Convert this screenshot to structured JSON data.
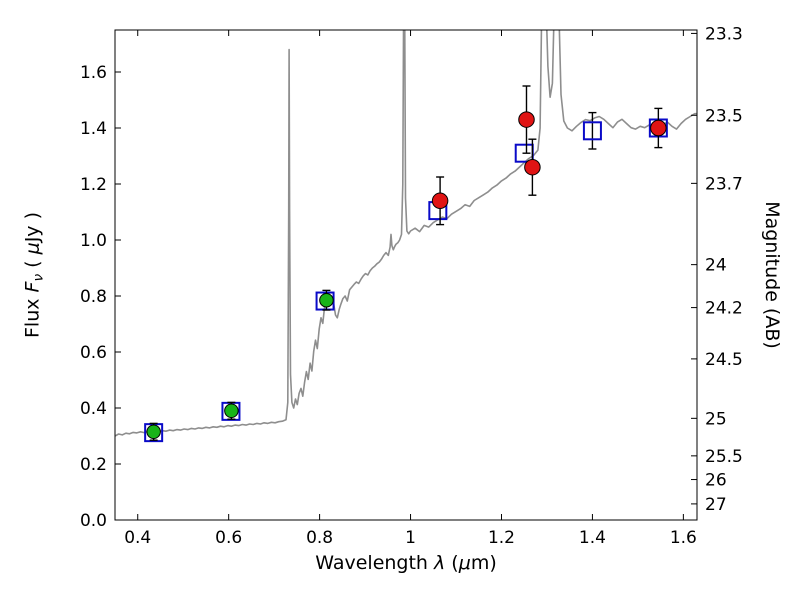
{
  "figure": {
    "background": "#ffffff",
    "frame_color": "#000000",
    "tick_color": "#000000"
  },
  "chart_data": {
    "type": "line",
    "title": "",
    "xlabel": "Wavelength λ (μm)",
    "ylabel": "Flux Fν ( μJy )",
    "ylabel_right": "Magnitude (AB)",
    "xlabel_parts": [
      {
        "t": "Wavelength  "
      },
      {
        "t": "λ",
        "i": true
      },
      {
        "t": "  ("
      },
      {
        "t": "μ",
        "i": true
      },
      {
        "t": "m)"
      }
    ],
    "ylabel_left_parts": [
      {
        "t": "Flux  "
      },
      {
        "t": "F",
        "i": true
      },
      {
        "t": "ν",
        "i": true,
        "sub": true
      },
      {
        "t": "  ( "
      },
      {
        "t": "μ",
        "i": true
      },
      {
        "t": "Jy )"
      }
    ],
    "ylabel_right_parts": [
      {
        "t": "Magnitude (AB)"
      }
    ],
    "xlim": [
      0.35,
      1.63
    ],
    "ylim": [
      0.0,
      1.75
    ],
    "grid": false,
    "legend": null,
    "xticks": [
      {
        "label": "0.4",
        "value": 0.4
      },
      {
        "label": "0.6",
        "value": 0.6
      },
      {
        "label": "0.8",
        "value": 0.8
      },
      {
        "label": "1",
        "value": 1.0
      },
      {
        "label": "1.2",
        "value": 1.2
      },
      {
        "label": "1.4",
        "value": 1.4
      },
      {
        "label": "1.6",
        "value": 1.6
      }
    ],
    "yticks_left": [
      {
        "label": "0.0",
        "value": 0.0
      },
      {
        "label": "0.2",
        "value": 0.2
      },
      {
        "label": "0.4",
        "value": 0.4
      },
      {
        "label": "0.6",
        "value": 0.6
      },
      {
        "label": "0.8",
        "value": 0.8
      },
      {
        "label": "1.0",
        "value": 1.0
      },
      {
        "label": "1.2",
        "value": 1.2
      },
      {
        "label": "1.4",
        "value": 1.4
      },
      {
        "label": "1.6",
        "value": 1.6
      }
    ],
    "yticks_right": [
      {
        "label": "23.3",
        "value": 1.7378
      },
      {
        "label": "23.5",
        "value": 1.4454
      },
      {
        "label": "23.7",
        "value": 1.2023
      },
      {
        "label": "24",
        "value": 0.912
      },
      {
        "label": "24.2",
        "value": 0.7586
      },
      {
        "label": "24.5",
        "value": 0.5754
      },
      {
        "label": "25",
        "value": 0.3631
      },
      {
        "label": "25.5",
        "value": 0.2291
      },
      {
        "label": "26",
        "value": 0.1445
      },
      {
        "label": "27",
        "value": 0.0575
      }
    ],
    "errorbar_color": "#000000",
    "series": [
      {
        "name": "model-spectrum",
        "type": "line",
        "color": "#8e8e8e",
        "width": 1.6,
        "points": [
          [
            0.35,
            0.3
          ],
          [
            0.358,
            0.307
          ],
          [
            0.366,
            0.304
          ],
          [
            0.374,
            0.31
          ],
          [
            0.382,
            0.308
          ],
          [
            0.39,
            0.313
          ],
          [
            0.398,
            0.311
          ],
          [
            0.406,
            0.315
          ],
          [
            0.414,
            0.312
          ],
          [
            0.422,
            0.316
          ],
          [
            0.43,
            0.314
          ],
          [
            0.438,
            0.318
          ],
          [
            0.446,
            0.315
          ],
          [
            0.454,
            0.319
          ],
          [
            0.462,
            0.317
          ],
          [
            0.47,
            0.321
          ],
          [
            0.478,
            0.319
          ],
          [
            0.486,
            0.323
          ],
          [
            0.494,
            0.321
          ],
          [
            0.502,
            0.325
          ],
          [
            0.51,
            0.323
          ],
          [
            0.518,
            0.327
          ],
          [
            0.526,
            0.325
          ],
          [
            0.534,
            0.329
          ],
          [
            0.542,
            0.327
          ],
          [
            0.55,
            0.331
          ],
          [
            0.558,
            0.329
          ],
          [
            0.566,
            0.333
          ],
          [
            0.574,
            0.331
          ],
          [
            0.582,
            0.335
          ],
          [
            0.59,
            0.333
          ],
          [
            0.598,
            0.337
          ],
          [
            0.606,
            0.335
          ],
          [
            0.614,
            0.339
          ],
          [
            0.622,
            0.337
          ],
          [
            0.63,
            0.341
          ],
          [
            0.638,
            0.339
          ],
          [
            0.646,
            0.343
          ],
          [
            0.654,
            0.341
          ],
          [
            0.662,
            0.345
          ],
          [
            0.67,
            0.343
          ],
          [
            0.678,
            0.347
          ],
          [
            0.686,
            0.345
          ],
          [
            0.694,
            0.349
          ],
          [
            0.702,
            0.347
          ],
          [
            0.71,
            0.351
          ],
          [
            0.718,
            0.353
          ],
          [
            0.726,
            0.358
          ],
          [
            0.73,
            0.42
          ],
          [
            0.732,
            1.1
          ],
          [
            0.733,
            1.68
          ],
          [
            0.734,
            1.1
          ],
          [
            0.736,
            0.52
          ],
          [
            0.739,
            0.42
          ],
          [
            0.743,
            0.4
          ],
          [
            0.747,
            0.432
          ],
          [
            0.751,
            0.412
          ],
          [
            0.755,
            0.452
          ],
          [
            0.759,
            0.47
          ],
          [
            0.763,
            0.442
          ],
          [
            0.767,
            0.492
          ],
          [
            0.771,
            0.53
          ],
          [
            0.775,
            0.502
          ],
          [
            0.779,
            0.56
          ],
          [
            0.783,
            0.532
          ],
          [
            0.787,
            0.602
          ],
          [
            0.791,
            0.642
          ],
          [
            0.795,
            0.612
          ],
          [
            0.799,
            0.682
          ],
          [
            0.803,
            0.722
          ],
          [
            0.807,
            0.702
          ],
          [
            0.811,
            0.762
          ],
          [
            0.815,
            0.782
          ],
          [
            0.819,
            0.792
          ],
          [
            0.823,
            0.8
          ],
          [
            0.827,
            0.79
          ],
          [
            0.831,
            0.772
          ],
          [
            0.835,
            0.732
          ],
          [
            0.839,
            0.722
          ],
          [
            0.843,
            0.752
          ],
          [
            0.847,
            0.772
          ],
          [
            0.851,
            0.79
          ],
          [
            0.856,
            0.8
          ],
          [
            0.861,
            0.782
          ],
          [
            0.866,
            0.822
          ],
          [
            0.871,
            0.832
          ],
          [
            0.876,
            0.842
          ],
          [
            0.881,
            0.85
          ],
          [
            0.886,
            0.845
          ],
          [
            0.891,
            0.86
          ],
          [
            0.896,
            0.872
          ],
          [
            0.901,
            0.88
          ],
          [
            0.906,
            0.875
          ],
          [
            0.911,
            0.89
          ],
          [
            0.916,
            0.9
          ],
          [
            0.921,
            0.906
          ],
          [
            0.926,
            0.915
          ],
          [
            0.931,
            0.921
          ],
          [
            0.936,
            0.931
          ],
          [
            0.941,
            0.945
          ],
          [
            0.946,
            0.955
          ],
          [
            0.951,
            0.945
          ],
          [
            0.955,
            0.975
          ],
          [
            0.957,
            1.02
          ],
          [
            0.959,
            0.98
          ],
          [
            0.962,
            0.965
          ],
          [
            0.965,
            0.976
          ],
          [
            0.968,
            0.985
          ],
          [
            0.972,
            0.99
          ],
          [
            0.976,
            1.0
          ],
          [
            0.98,
            1.02
          ],
          [
            0.983,
            1.2
          ],
          [
            0.985,
            1.9
          ],
          [
            0.987,
            1.9
          ],
          [
            0.989,
            1.15
          ],
          [
            0.992,
            1.032
          ],
          [
            0.996,
            1.022
          ],
          [
            1.0,
            1.032
          ],
          [
            1.01,
            1.042
          ],
          [
            1.02,
            1.03
          ],
          [
            1.03,
            1.052
          ],
          [
            1.04,
            1.046
          ],
          [
            1.05,
            1.062
          ],
          [
            1.06,
            1.072
          ],
          [
            1.07,
            1.082
          ],
          [
            1.08,
            1.076
          ],
          [
            1.09,
            1.092
          ],
          [
            1.1,
            1.102
          ],
          [
            1.11,
            1.112
          ],
          [
            1.12,
            1.126
          ],
          [
            1.13,
            1.12
          ],
          [
            1.14,
            1.141
          ],
          [
            1.15,
            1.151
          ],
          [
            1.16,
            1.161
          ],
          [
            1.17,
            1.171
          ],
          [
            1.18,
            1.186
          ],
          [
            1.19,
            1.196
          ],
          [
            1.2,
            1.211
          ],
          [
            1.21,
            1.221
          ],
          [
            1.22,
            1.236
          ],
          [
            1.23,
            1.246
          ],
          [
            1.24,
            1.261
          ],
          [
            1.25,
            1.276
          ],
          [
            1.26,
            1.291
          ],
          [
            1.27,
            1.301
          ],
          [
            1.28,
            1.321
          ],
          [
            1.285,
            1.4
          ],
          [
            1.289,
            1.9
          ],
          [
            1.297,
            1.9
          ],
          [
            1.302,
            1.62
          ],
          [
            1.307,
            1.51
          ],
          [
            1.312,
            1.56
          ],
          [
            1.317,
            1.9
          ],
          [
            1.325,
            1.9
          ],
          [
            1.331,
            1.52
          ],
          [
            1.337,
            1.425
          ],
          [
            1.345,
            1.4
          ],
          [
            1.355,
            1.39
          ],
          [
            1.365,
            1.406
          ],
          [
            1.375,
            1.42
          ],
          [
            1.385,
            1.43
          ],
          [
            1.395,
            1.426
          ],
          [
            1.405,
            1.436
          ],
          [
            1.415,
            1.441
          ],
          [
            1.425,
            1.431
          ],
          [
            1.435,
            1.416
          ],
          [
            1.445,
            1.401
          ],
          [
            1.455,
            1.421
          ],
          [
            1.465,
            1.431
          ],
          [
            1.475,
            1.416
          ],
          [
            1.485,
            1.401
          ],
          [
            1.495,
            1.396
          ],
          [
            1.505,
            1.406
          ],
          [
            1.515,
            1.401
          ],
          [
            1.525,
            1.411
          ],
          [
            1.535,
            1.406
          ],
          [
            1.545,
            1.401
          ],
          [
            1.555,
            1.411
          ],
          [
            1.565,
            1.421
          ],
          [
            1.575,
            1.406
          ],
          [
            1.585,
            1.396
          ],
          [
            1.595,
            1.416
          ],
          [
            1.605,
            1.431
          ],
          [
            1.615,
            1.441
          ],
          [
            1.625,
            1.451
          ],
          [
            1.63,
            1.451
          ]
        ]
      },
      {
        "name": "model-photometry",
        "type": "scatter",
        "marker": "open-square",
        "color": "#0a0ac8",
        "stroke_width": 2,
        "size": 17,
        "points": [
          {
            "x": 0.435,
            "y": 0.312
          },
          {
            "x": 0.605,
            "y": 0.388
          },
          {
            "x": 0.812,
            "y": 0.782
          },
          {
            "x": 1.06,
            "y": 1.105
          },
          {
            "x": 1.25,
            "y": 1.31
          },
          {
            "x": 1.4,
            "y": 1.39,
            "yerr": 0.065
          },
          {
            "x": 1.545,
            "y": 1.4
          }
        ]
      },
      {
        "name": "observed-photometry-optical",
        "type": "scatter",
        "marker": "circle",
        "color": "#18b418",
        "edge": "#000000",
        "stroke_width": 1,
        "size": 13.5,
        "points": [
          {
            "x": 0.435,
            "y": 0.315,
            "yerr": 0.03
          },
          {
            "x": 0.606,
            "y": 0.39,
            "yerr": 0.03
          },
          {
            "x": 0.815,
            "y": 0.785,
            "yerr": 0.035
          }
        ]
      },
      {
        "name": "observed-photometry-infrared",
        "type": "scatter",
        "marker": "circle",
        "color": "#e01414",
        "edge": "#000000",
        "stroke_width": 1,
        "size": 15.5,
        "points": [
          {
            "x": 1.065,
            "y": 1.14,
            "yerr": 0.085
          },
          {
            "x": 1.255,
            "y": 1.43,
            "yerr": 0.12
          },
          {
            "x": 1.268,
            "y": 1.26,
            "yerr": 0.1
          },
          {
            "x": 1.545,
            "y": 1.4,
            "yerr": 0.07
          }
        ]
      }
    ]
  }
}
